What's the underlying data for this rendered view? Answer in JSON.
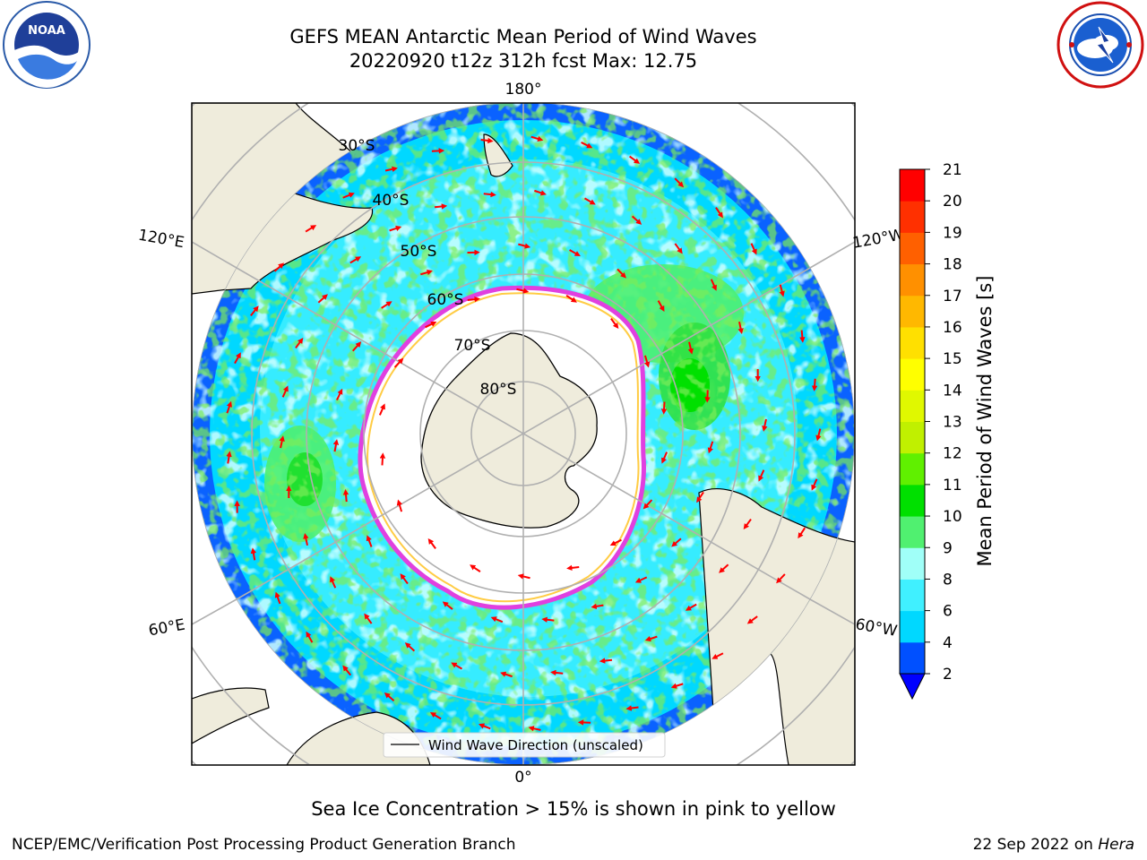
{
  "header": {
    "title_line1": "GEFS MEAN Antarctic Mean Period of Wind Waves",
    "title_line2": "20220920 t12z 312h fcst   Max: 12.75"
  },
  "logos": {
    "left": {
      "icon": "noaa-logo-icon",
      "text": "NOAA"
    },
    "right": {
      "icon": "national-weather-service-logo-icon"
    }
  },
  "map": {
    "projection": "south-polar-stereographic",
    "longitude_labels": [
      "180°",
      "120°E",
      "120°W",
      "60°E",
      "60°W",
      "0°"
    ],
    "latitude_labels": [
      "30°S",
      "40°S",
      "50°S",
      "60°S",
      "70°S",
      "80°S"
    ],
    "legend_entry": "Wind Wave Direction (unscaled)",
    "colors": {
      "land": "#efecdc",
      "coast": "#000000",
      "grid": "#b0b0b0",
      "arrows": "#ff0000",
      "ice_edge": "#e040e0"
    }
  },
  "colorbar": {
    "label": "Mean Period of Wind Waves [s]",
    "ticks": [
      "2",
      "4",
      "6",
      "8",
      "9",
      "10",
      "11",
      "12",
      "13",
      "14",
      "15",
      "16",
      "17",
      "18",
      "19",
      "20",
      "21"
    ],
    "colors": [
      "#0050ff",
      "#00d8ff",
      "#40f0ff",
      "#a0fff8",
      "#50f070",
      "#00e000",
      "#60f000",
      "#c0f000",
      "#e0f800",
      "#ffff00",
      "#ffe000",
      "#ffb800",
      "#ff9000",
      "#ff6000",
      "#ff3000",
      "#ff0000"
    ],
    "under_color": "#0000ff"
  },
  "caption": "Sea Ice Concentration > 15% is shown in pink to yellow",
  "footer": {
    "left": "NCEP/EMC/Verification Post Processing Product Generation Branch",
    "right_date": "22 Sep 2022 on ",
    "right_host": "Hera"
  }
}
